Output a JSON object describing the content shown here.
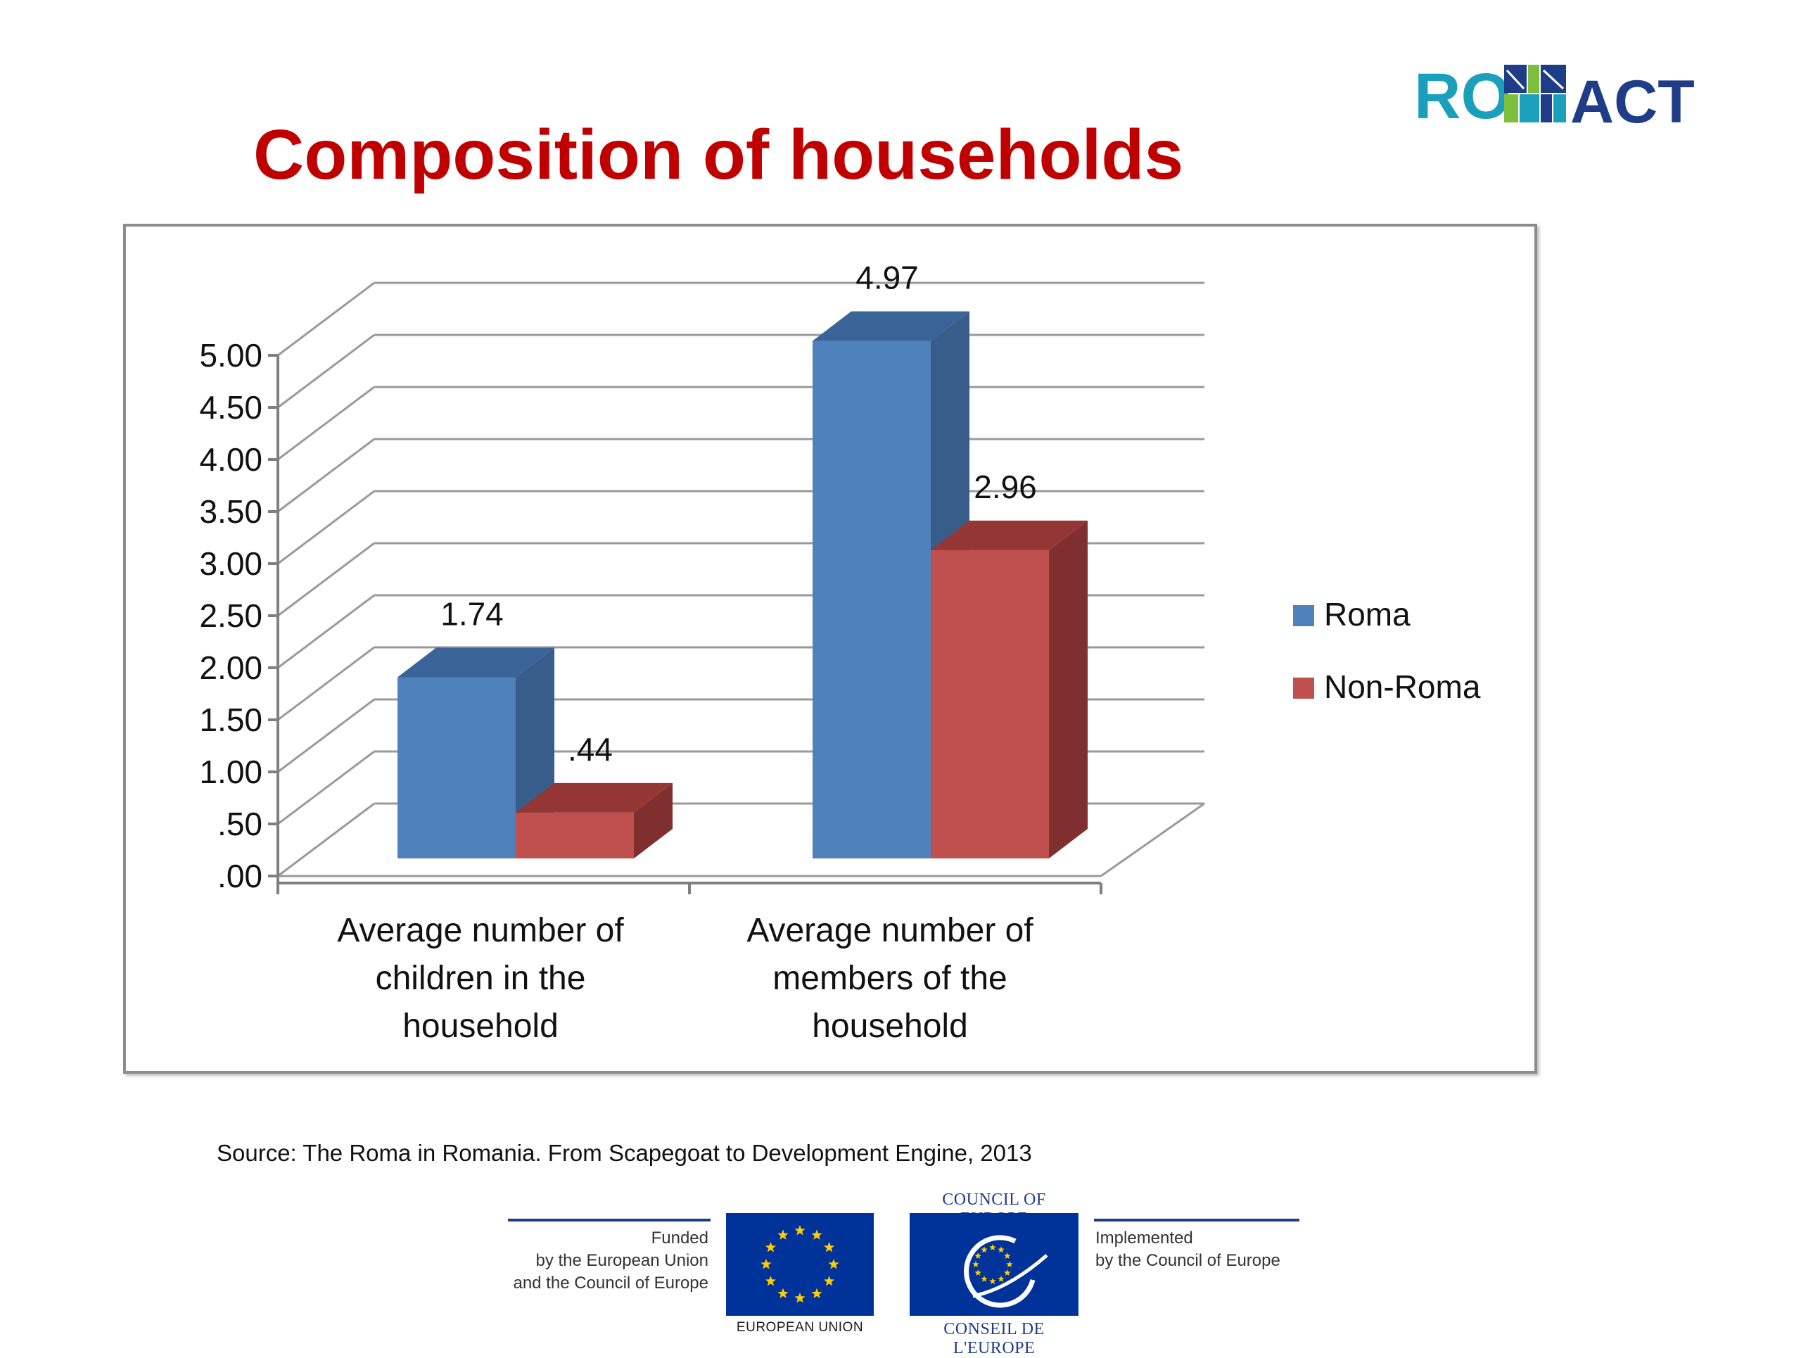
{
  "title": "Composition of households",
  "logo": {
    "text_left": "RO",
    "text_right": "ACT",
    "colors": {
      "teal": "#1a9fbc",
      "red": "#e04b4b",
      "navy": "#1f3c88",
      "green": "#7dbf3d"
    }
  },
  "chart_data": {
    "type": "bar",
    "style": "3d-clustered-column",
    "categories": [
      [
        "Average number of",
        "children in the",
        "household"
      ],
      [
        "Average number of",
        "members of the",
        "household"
      ]
    ],
    "series": [
      {
        "name": "Roma",
        "values": [
          1.74,
          4.97
        ],
        "labels": [
          "1.74",
          "4.97"
        ],
        "color": "#4f81bd",
        "side_color": "#385d8a",
        "top_color": "#3a6497"
      },
      {
        "name": "Non-Roma",
        "values": [
          0.44,
          2.96
        ],
        "labels": [
          ".44",
          "2.96"
        ],
        "color": "#c0504d",
        "side_color": "#7f2f2d",
        "top_color": "#943634"
      }
    ],
    "ylim": [
      0,
      5
    ],
    "yticks": [
      0,
      0.5,
      1,
      1.5,
      2,
      2.5,
      3,
      3.5,
      4,
      4.5,
      5
    ],
    "ytick_labels": [
      ".00",
      ".50",
      "1.00",
      "1.50",
      "2.00",
      "2.50",
      "3.00",
      "3.50",
      "4.00",
      "4.50",
      "5.00"
    ],
    "grid": true,
    "legend_position": "right",
    "xlabel": "",
    "ylabel": ""
  },
  "source": "Source: The Roma in Romania. From Scapegoat to Development Engine, 2013",
  "footer": {
    "funded_lines": [
      "Funded",
      "by the European Union",
      "and the Council of Europe"
    ],
    "eu_label": "EUROPEAN UNION",
    "coe_top": "COUNCIL OF EUROPE",
    "coe_bottom": "CONSEIL DE L'EUROPE",
    "implemented_lines": [
      "Implemented",
      "by the Council of Europe"
    ],
    "eu_star_color": "#ffcc00",
    "eu_blue": "#003399"
  }
}
